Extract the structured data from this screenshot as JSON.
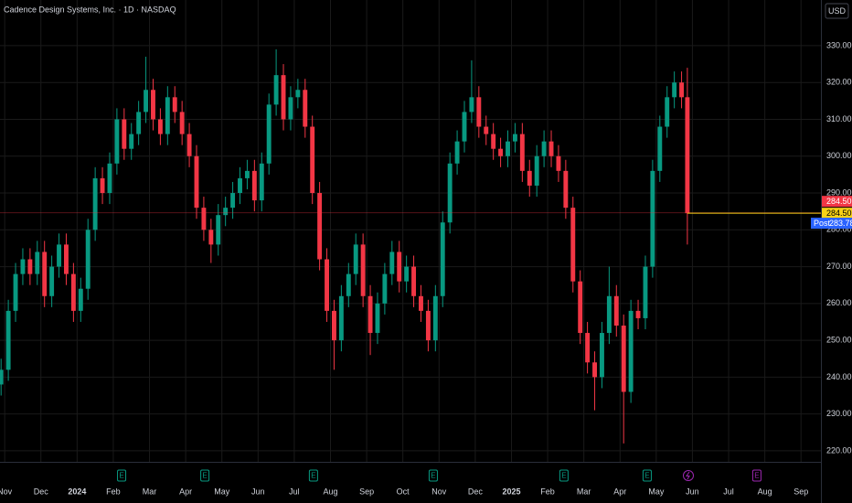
{
  "chart_data": {
    "type": "candlestick",
    "title": "Cadence Design Systems, Inc. · 1D · NASDAQ",
    "currency": "USD",
    "up_color": "#089981",
    "down_color": "#f23645",
    "ylim": [
      217,
      342.4
    ],
    "yticks": [
      {
        "value": 220,
        "label": "220.00"
      },
      {
        "value": 230,
        "label": "230.00"
      },
      {
        "value": 240,
        "label": "240.00"
      },
      {
        "value": 250,
        "label": "250.00"
      },
      {
        "value": 260,
        "label": "260.00"
      },
      {
        "value": 270,
        "label": "270.00"
      },
      {
        "value": 280,
        "label": "280.00"
      },
      {
        "value": 290,
        "label": "290.00"
      },
      {
        "value": 300,
        "label": "300.00"
      },
      {
        "value": 310,
        "label": "310.00"
      },
      {
        "value": 320,
        "label": "320.00"
      },
      {
        "value": 330,
        "label": "330.00"
      }
    ],
    "xlim": [
      -0.13,
      22.55
    ],
    "xticks": [
      {
        "value": 0,
        "label": "Nov"
      },
      {
        "value": 1,
        "label": "Dec"
      },
      {
        "value": 2,
        "label": "2024"
      },
      {
        "value": 3,
        "label": "Feb"
      },
      {
        "value": 4,
        "label": "Mar"
      },
      {
        "value": 5,
        "label": "Apr"
      },
      {
        "value": 6,
        "label": "May"
      },
      {
        "value": 7,
        "label": "Jun"
      },
      {
        "value": 8,
        "label": "Jul"
      },
      {
        "value": 9,
        "label": "Aug"
      },
      {
        "value": 10,
        "label": "Sep"
      },
      {
        "value": 11,
        "label": "Oct"
      },
      {
        "value": 12,
        "label": "Nov"
      },
      {
        "value": 13,
        "label": "Dec"
      },
      {
        "value": 14,
        "label": "2025"
      },
      {
        "value": 15,
        "label": "Feb"
      },
      {
        "value": 16,
        "label": "Mar"
      },
      {
        "value": 17,
        "label": "Apr"
      },
      {
        "value": 18,
        "label": "May"
      },
      {
        "value": 19,
        "label": "Jun"
      },
      {
        "value": 20,
        "label": "Jul"
      },
      {
        "value": 21,
        "label": "Aug"
      },
      {
        "value": 22,
        "label": "Sep"
      }
    ],
    "grid": true,
    "candles": {
      "x": [
        -0.1,
        0.1,
        0.3,
        0.5,
        0.7,
        0.9,
        1.1,
        1.3,
        1.5,
        1.7,
        1.9,
        2.1,
        2.3,
        2.5,
        2.7,
        2.9,
        3.1,
        3.3,
        3.5,
        3.7,
        3.9,
        4.1,
        4.3,
        4.5,
        4.7,
        4.9,
        5.1,
        5.3,
        5.5,
        5.7,
        5.9,
        6.1,
        6.3,
        6.5,
        6.7,
        6.9,
        7.1,
        7.3,
        7.5,
        7.7,
        7.9,
        8.1,
        8.3,
        8.5,
        8.7,
        8.9,
        9.1,
        9.3,
        9.5,
        9.7,
        9.9,
        10.1,
        10.3,
        10.5,
        10.7,
        10.9,
        11.1,
        11.3,
        11.5,
        11.7,
        11.9,
        12.1,
        12.3,
        12.5,
        12.7,
        12.9,
        13.1,
        13.3,
        13.5,
        13.7,
        13.9,
        14.1,
        14.3,
        14.5,
        14.7,
        14.9,
        15.1,
        15.3,
        15.5,
        15.7,
        15.9,
        16.1,
        16.3,
        16.5,
        16.7,
        16.9,
        17.1,
        17.3,
        17.5,
        17.7,
        17.9,
        18.1,
        18.3,
        18.5,
        18.7,
        18.86
      ],
      "open": [
        238,
        242,
        258,
        268,
        272,
        268,
        274,
        262,
        270,
        276,
        268,
        258,
        264,
        280,
        294,
        290,
        298,
        310,
        302,
        306,
        312,
        318,
        310,
        306,
        316,
        312,
        306,
        300,
        286,
        280,
        276,
        284,
        286,
        290,
        294,
        296,
        288,
        298,
        314,
        322,
        310,
        316,
        318,
        308,
        290,
        272,
        258,
        250,
        262,
        268,
        276,
        262,
        252,
        260,
        268,
        274,
        266,
        270,
        262,
        258,
        250,
        262,
        282,
        298,
        304,
        312,
        316,
        308,
        306,
        302,
        300,
        304,
        306,
        296,
        292,
        300,
        304,
        300,
        296,
        286,
        266,
        252,
        244,
        240,
        252,
        262,
        254,
        236,
        258,
        256,
        270,
        296,
        308,
        316,
        320,
        316
      ],
      "high": [
        245,
        261,
        271,
        275,
        275,
        277,
        277,
        273,
        279,
        279,
        271,
        267,
        283,
        297,
        297,
        301,
        313,
        313,
        309,
        315,
        327,
        321,
        313,
        319,
        319,
        315,
        309,
        303,
        289,
        283,
        287,
        289,
        293,
        297,
        299,
        299,
        301,
        317,
        329,
        325,
        319,
        321,
        321,
        311,
        293,
        275,
        261,
        265,
        271,
        279,
        279,
        265,
        263,
        271,
        277,
        277,
        273,
        273,
        265,
        261,
        265,
        285,
        301,
        307,
        315,
        326,
        319,
        311,
        309,
        305,
        307,
        309,
        309,
        299,
        303,
        307,
        307,
        303,
        299,
        289,
        269,
        255,
        247,
        255,
        270,
        265,
        257,
        261,
        261,
        273,
        299,
        311,
        319,
        323,
        323,
        324
      ],
      "low": [
        235,
        239,
        255,
        265,
        265,
        265,
        259,
        259,
        267,
        265,
        255,
        255,
        261,
        277,
        287,
        287,
        295,
        299,
        299,
        303,
        309,
        307,
        303,
        303,
        309,
        303,
        297,
        283,
        277,
        271,
        273,
        281,
        283,
        287,
        291,
        285,
        285,
        295,
        311,
        307,
        307,
        313,
        305,
        287,
        269,
        255,
        242,
        247,
        259,
        265,
        259,
        246,
        249,
        257,
        265,
        263,
        263,
        259,
        255,
        247,
        247,
        259,
        279,
        295,
        301,
        309,
        305,
        303,
        299,
        297,
        297,
        301,
        293,
        289,
        289,
        297,
        297,
        293,
        283,
        263,
        249,
        241,
        231,
        237,
        249,
        251,
        222,
        233,
        253,
        253,
        267,
        293,
        305,
        313,
        313,
        276
      ],
      "close": [
        242,
        258,
        268,
        272,
        268,
        274,
        262,
        270,
        276,
        268,
        258,
        264,
        280,
        294,
        290,
        298,
        310,
        302,
        306,
        312,
        318,
        310,
        306,
        316,
        312,
        306,
        300,
        286,
        280,
        276,
        284,
        286,
        290,
        294,
        296,
        288,
        298,
        314,
        322,
        310,
        316,
        318,
        308,
        290,
        272,
        258,
        250,
        262,
        268,
        276,
        262,
        252,
        260,
        268,
        274,
        266,
        270,
        262,
        258,
        250,
        262,
        282,
        298,
        304,
        312,
        316,
        308,
        306,
        302,
        300,
        304,
        306,
        296,
        292,
        300,
        304,
        300,
        296,
        286,
        266,
        252,
        244,
        240,
        252,
        262,
        254,
        236,
        258,
        256,
        270,
        296,
        308,
        316,
        320,
        316,
        284.5
      ]
    },
    "last_price": {
      "value": 284.5,
      "label": "284.50",
      "color": "#f7d117",
      "close_color": "#f23645"
    },
    "post_price": {
      "name": "Post",
      "value": 283.78,
      "label": "283.78",
      "color": "#2962ff"
    },
    "events": [
      {
        "x": 3.23,
        "label": "E",
        "color": "#089981"
      },
      {
        "x": 5.53,
        "label": "E",
        "color": "#089981"
      },
      {
        "x": 8.53,
        "label": "E",
        "color": "#089981"
      },
      {
        "x": 11.84,
        "label": "E",
        "color": "#089981"
      },
      {
        "x": 15.45,
        "label": "E",
        "color": "#089981"
      },
      {
        "x": 17.75,
        "label": "E",
        "color": "#089981"
      },
      {
        "x": 20.78,
        "label": "E",
        "color": "#9c27b0"
      }
    ]
  }
}
